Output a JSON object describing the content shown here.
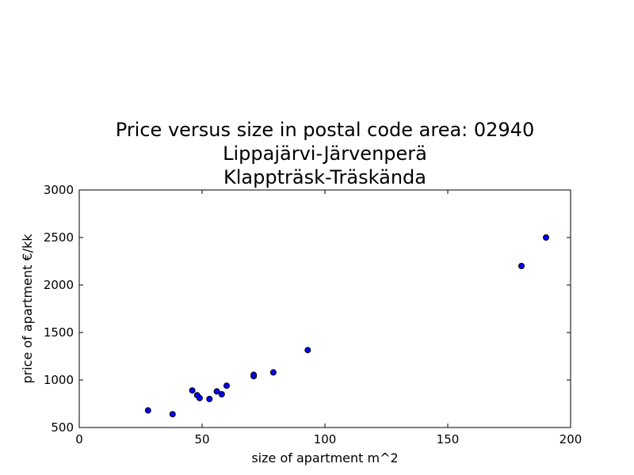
{
  "chart_data": {
    "type": "scatter",
    "title_lines": [
      "Price versus size in postal code area: 02940",
      "Lippajärvi-Järvenperä",
      "Klappträsk-Träskända"
    ],
    "xlabel": "size of apartment m^2",
    "ylabel": "price of apartment €/kk",
    "xlim": [
      0,
      200
    ],
    "ylim": [
      500,
      3000
    ],
    "xticks": [
      0,
      50,
      100,
      150,
      200
    ],
    "yticks": [
      500,
      1000,
      1500,
      2000,
      2500,
      3000
    ],
    "grid": false,
    "marker_color": "#0000ff",
    "points": [
      {
        "x": 28,
        "y": 680
      },
      {
        "x": 38,
        "y": 640
      },
      {
        "x": 46,
        "y": 890
      },
      {
        "x": 48,
        "y": 840
      },
      {
        "x": 49,
        "y": 810
      },
      {
        "x": 53,
        "y": 800
      },
      {
        "x": 56,
        "y": 880
      },
      {
        "x": 58,
        "y": 850
      },
      {
        "x": 60,
        "y": 940
      },
      {
        "x": 71,
        "y": 1040
      },
      {
        "x": 71,
        "y": 1055
      },
      {
        "x": 79,
        "y": 1080
      },
      {
        "x": 93,
        "y": 1315
      },
      {
        "x": 180,
        "y": 2200
      },
      {
        "x": 190,
        "y": 2500
      }
    ]
  }
}
